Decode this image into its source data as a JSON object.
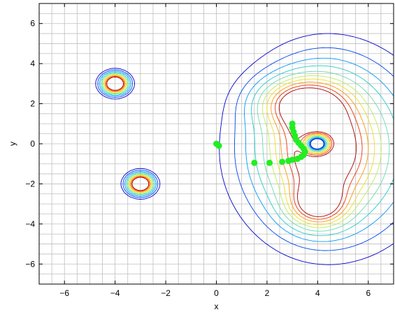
{
  "chart_data": {
    "type": "contour",
    "xlabel": "x",
    "ylabel": "y",
    "xlim": [
      -7,
      7
    ],
    "ylim": [
      -7,
      7
    ],
    "xticks": [
      -6,
      -4,
      -2,
      0,
      2,
      4,
      6
    ],
    "yticks": [
      -6,
      -4,
      -2,
      0,
      2,
      4,
      6
    ],
    "xtick_labels": [
      "−6",
      "−4",
      "−2",
      "0",
      "2",
      "4",
      "6"
    ],
    "ytick_labels": [
      "−6",
      "−4",
      "−2",
      "0",
      "2",
      "4",
      "6"
    ],
    "grid": true,
    "minor_grid_step": 0.5,
    "sources": [
      {
        "x": -4,
        "y": 3,
        "kind": "narrow-peak"
      },
      {
        "x": -3,
        "y": -2,
        "kind": "narrow-peak"
      },
      {
        "x": 3.5,
        "y": 2,
        "kind": "peak"
      },
      {
        "x": 4,
        "y": 0,
        "kind": "hole"
      },
      {
        "x": 4,
        "y": -3,
        "kind": "peak"
      }
    ],
    "path_points": [
      {
        "x": 0,
        "y": 0
      },
      {
        "x": 0.1,
        "y": -0.1
      },
      {
        "x": 1.5,
        "y": -0.95
      },
      {
        "x": 2.1,
        "y": -0.95
      },
      {
        "x": 2.6,
        "y": -0.9
      },
      {
        "x": 2.85,
        "y": -0.85
      },
      {
        "x": 3.0,
        "y": -0.8
      },
      {
        "x": 3.2,
        "y": -0.75
      },
      {
        "x": 3.35,
        "y": -0.65
      },
      {
        "x": 3.45,
        "y": -0.55
      },
      {
        "x": 3.5,
        "y": -0.4
      },
      {
        "x": 3.45,
        "y": -0.25
      },
      {
        "x": 3.35,
        "y": -0.1
      },
      {
        "x": 3.25,
        "y": 0.05
      },
      {
        "x": 3.15,
        "y": 0.2
      },
      {
        "x": 3.1,
        "y": 0.4
      },
      {
        "x": 3.05,
        "y": 0.6
      },
      {
        "x": 3.0,
        "y": 0.8
      },
      {
        "x": 3.0,
        "y": 1.0
      }
    ],
    "colors": {
      "path": "#22ee22",
      "grid": "#bfbfbf",
      "contour_scale": [
        "#0000cc",
        "#0044ee",
        "#0099ff",
        "#22cccc",
        "#66ddaa",
        "#bbee55",
        "#eedd22",
        "#ff9900",
        "#ee3300",
        "#aa0000"
      ]
    }
  }
}
